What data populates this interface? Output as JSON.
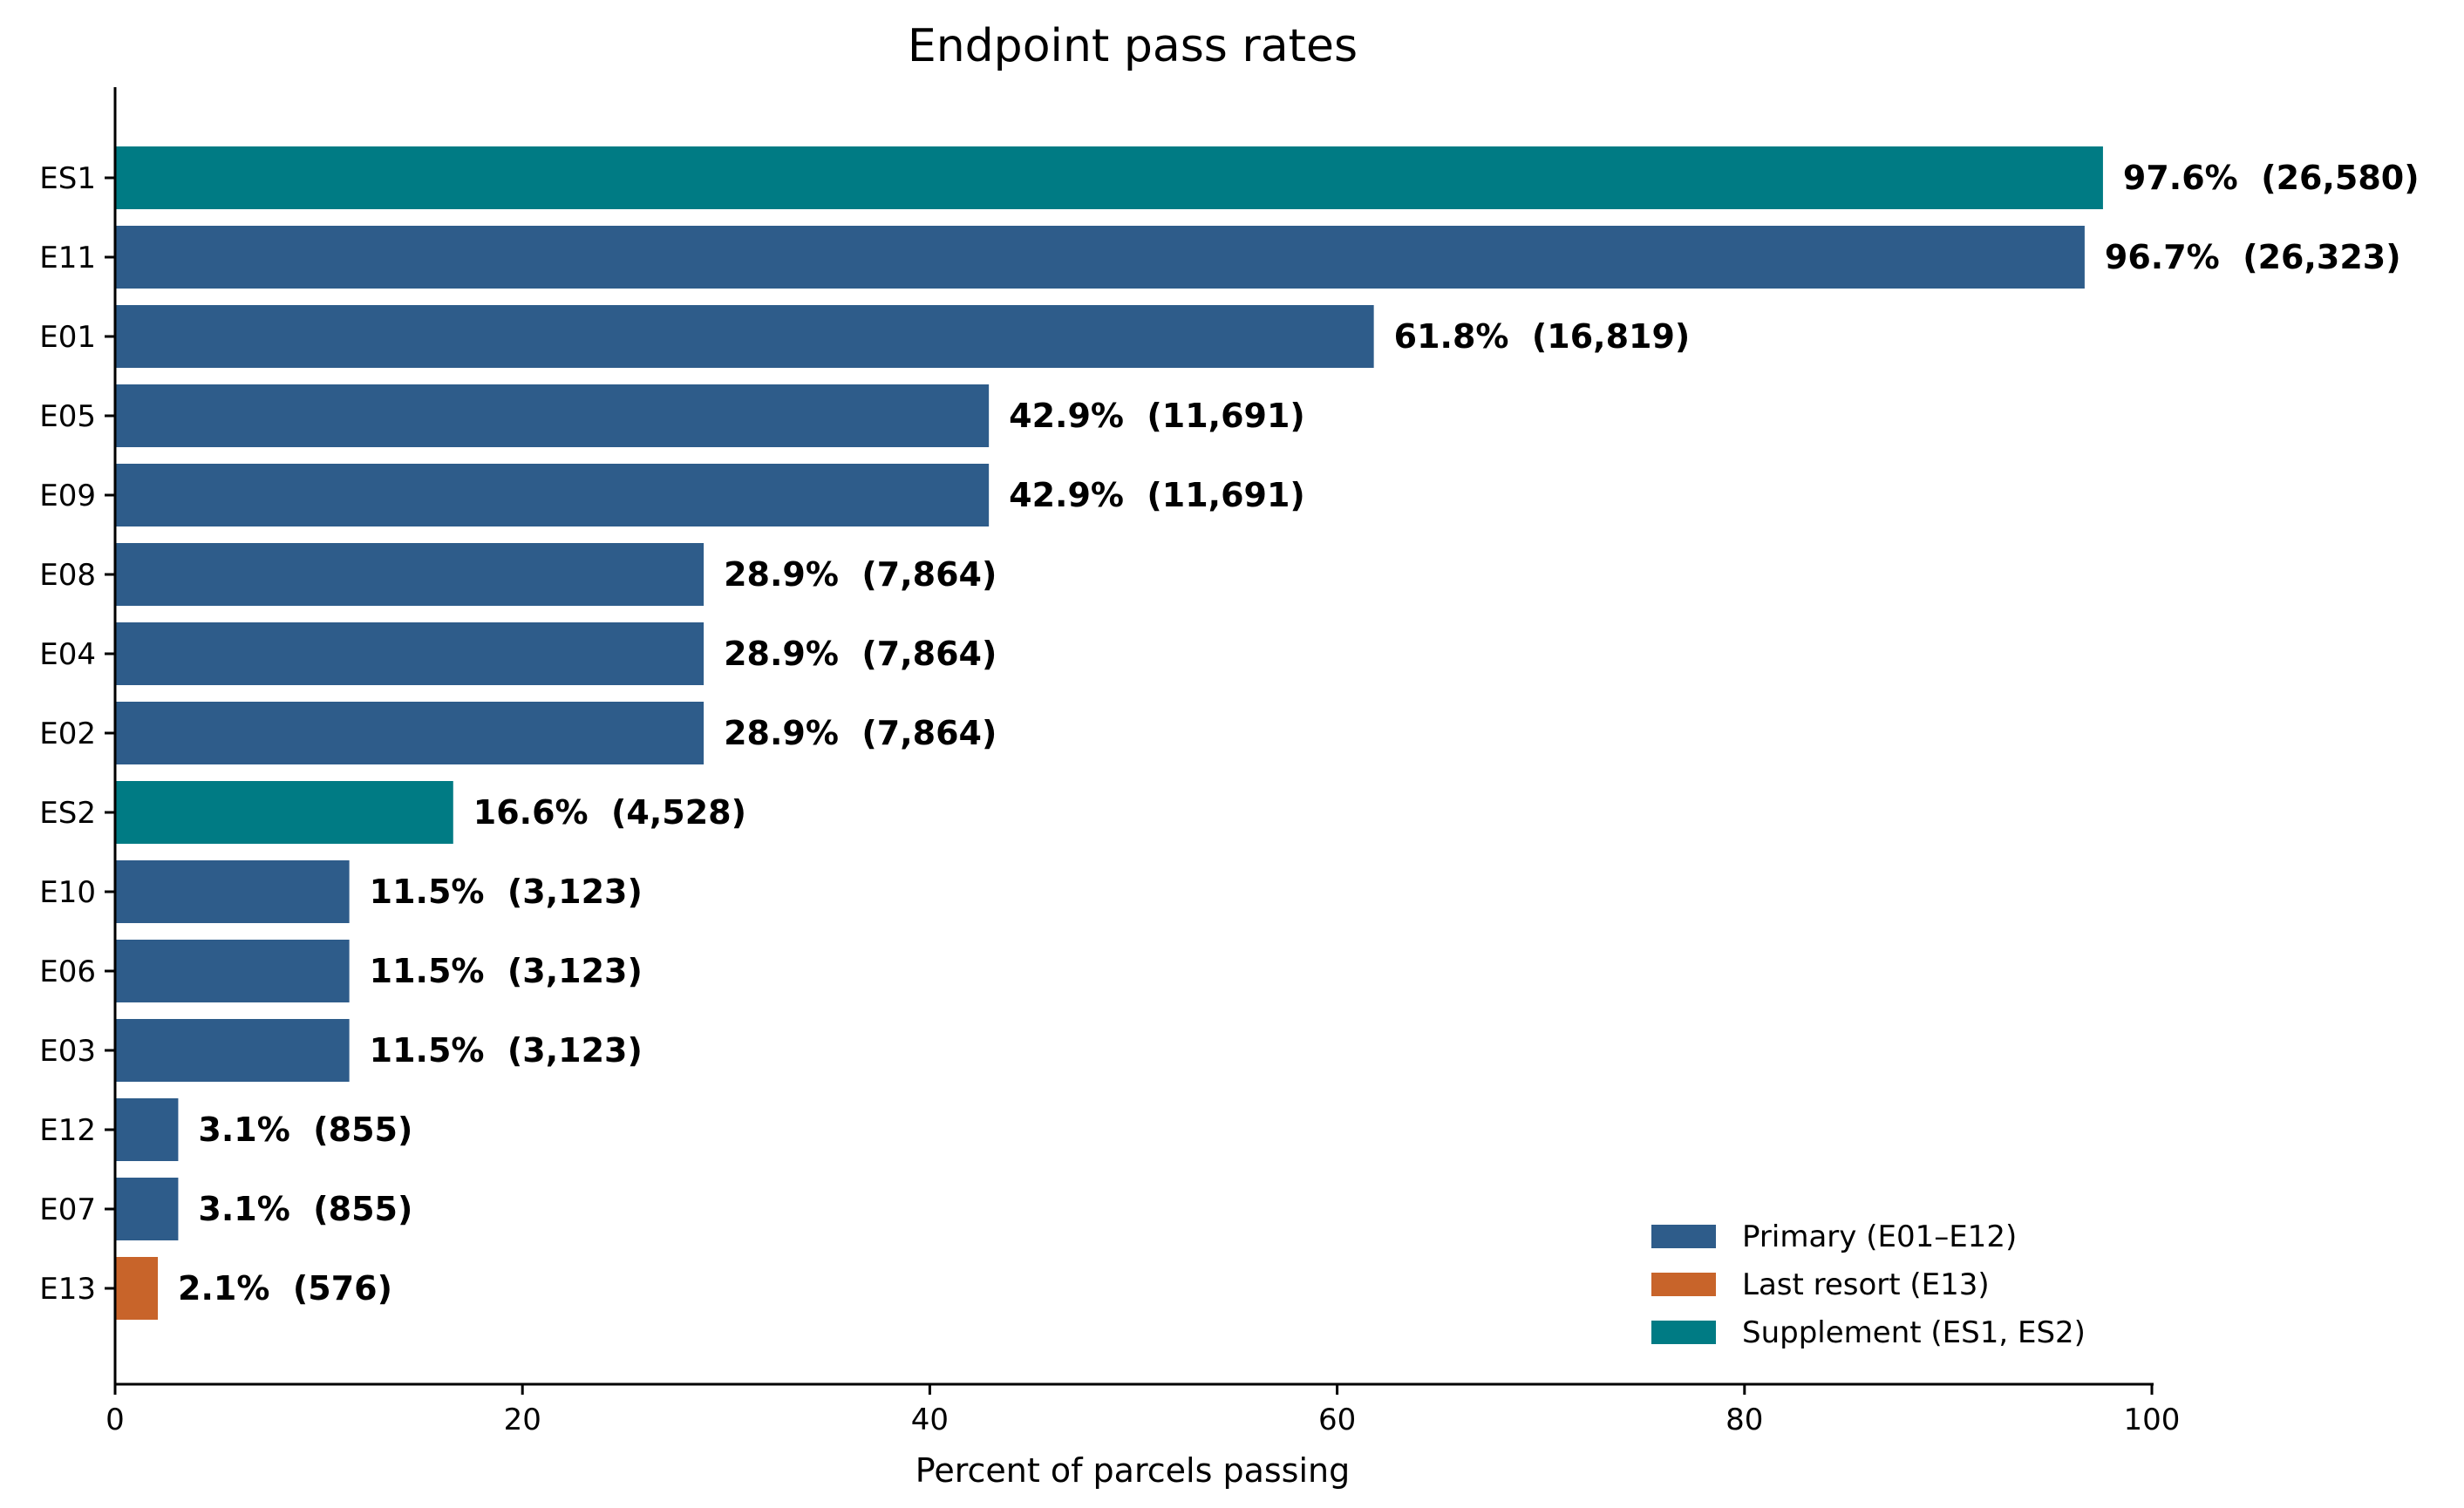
{
  "chart_data": {
    "type": "bar",
    "orientation": "horizontal",
    "title": "Endpoint pass rates",
    "xlabel": "Percent of parcels passing",
    "ylabel": "",
    "xlim": [
      0,
      100
    ],
    "xticks": [
      0,
      20,
      40,
      60,
      80,
      100
    ],
    "grid": false,
    "legend_position": "lower-right",
    "categories": [
      "ES1",
      "E11",
      "E01",
      "E05",
      "E09",
      "E08",
      "E04",
      "E02",
      "ES2",
      "E10",
      "E06",
      "E03",
      "E12",
      "E07",
      "E13"
    ],
    "values": [
      97.6,
      96.7,
      61.8,
      42.9,
      42.9,
      28.9,
      28.9,
      28.9,
      16.6,
      11.5,
      11.5,
      11.5,
      3.1,
      3.1,
      2.1
    ],
    "counts": [
      26580,
      26323,
      16819,
      11691,
      11691,
      7864,
      7864,
      7864,
      4528,
      3123,
      3123,
      3123,
      855,
      855,
      576
    ],
    "data_labels": [
      "97.6%  (26,580)",
      "96.7%  (26,323)",
      "61.8%  (16,819)",
      "42.9%  (11,691)",
      "42.9%  (11,691)",
      "28.9%  (7,864)",
      "28.9%  (7,864)",
      "28.9%  (7,864)",
      "16.6%  (4,528)",
      "11.5%  (3,123)",
      "11.5%  (3,123)",
      "11.5%  (3,123)",
      "3.1%  (855)",
      "3.1%  (855)",
      "2.1%  (576)"
    ],
    "groups": [
      "supplement",
      "primary",
      "primary",
      "primary",
      "primary",
      "primary",
      "primary",
      "primary",
      "supplement",
      "primary",
      "primary",
      "primary",
      "primary",
      "primary",
      "last_resort"
    ],
    "legend": [
      {
        "key": "primary",
        "label": "Primary (E01–E12)",
        "color": "#2e5c8a"
      },
      {
        "key": "last_resort",
        "label": "Last resort (E13)",
        "color": "#c8642a"
      },
      {
        "key": "supplement",
        "label": "Supplement (ES1, ES2)",
        "color": "#007b84"
      }
    ]
  }
}
